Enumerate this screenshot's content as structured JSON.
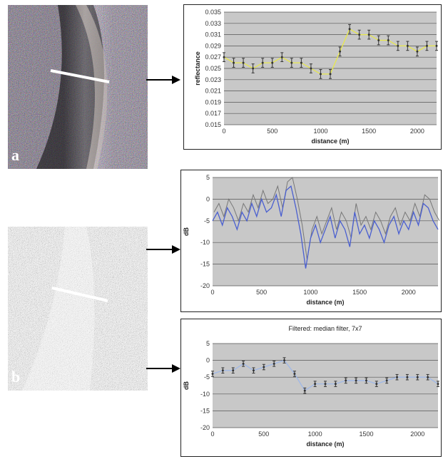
{
  "panels": [
    {
      "letter": "a"
    },
    {
      "letter": "b"
    }
  ],
  "chart_data": [
    {
      "type": "line",
      "title": "",
      "xlabel": "distance (m)",
      "ylabel": "reflectance",
      "xlim": [
        0,
        2200
      ],
      "ylim": [
        0.015,
        0.035
      ],
      "xticks": [
        "0",
        "500",
        "1000",
        "1500",
        "2000"
      ],
      "yticks": [
        "0.015",
        "0.017",
        "0.019",
        "0.021",
        "0.023",
        "0.025",
        "0.027",
        "0.029",
        "0.031",
        "0.033",
        "0.035"
      ],
      "grid": true,
      "series": [
        {
          "x": [
            0,
            100,
            200,
            300,
            400,
            500,
            600,
            700,
            800,
            900,
            1000,
            1100,
            1200,
            1300,
            1400,
            1500,
            1600,
            1700,
            1800,
            1900,
            2000,
            2100,
            2200
          ],
          "y": [
            0.027,
            0.026,
            0.026,
            0.025,
            0.026,
            0.026,
            0.027,
            0.026,
            0.026,
            0.025,
            0.024,
            0.024,
            0.028,
            0.032,
            0.031,
            0.031,
            0.03,
            0.03,
            0.029,
            0.029,
            0.028,
            0.029,
            0.029
          ],
          "err": [
            0.0008,
            0.0008,
            0.0008,
            0.0008,
            0.0008,
            0.0008,
            0.0008,
            0.0008,
            0.0008,
            0.0008,
            0.0008,
            0.0008,
            0.0008,
            0.0008,
            0.0008,
            0.0008,
            0.0008,
            0.0008,
            0.0008,
            0.0008,
            0.0008,
            0.0008,
            0.0008
          ]
        }
      ]
    },
    {
      "type": "line",
      "title": "",
      "xlabel": "distance (m)",
      "ylabel": "dB",
      "xlim": [
        0,
        2300
      ],
      "ylim": [
        -20,
        5
      ],
      "xticks": [
        "0",
        "500",
        "1000",
        "1500",
        "2000"
      ],
      "yticks": [
        "5",
        "0",
        "-5",
        "-10",
        "-15",
        "-20"
      ],
      "grid": true,
      "series": [
        {
          "x": [
            0,
            50,
            100,
            150,
            200,
            250,
            300,
            350,
            400,
            450,
            500,
            550,
            600,
            650,
            700,
            750,
            800,
            850,
            900,
            950,
            1000,
            1050,
            1100,
            1150,
            1200,
            1250,
            1300,
            1350,
            1400,
            1450,
            1500,
            1550,
            1600,
            1650,
            1700,
            1750,
            1800,
            1850,
            1900,
            1950,
            2000,
            2050,
            2100,
            2150,
            2200,
            2250,
            2300
          ],
          "y": [
            -5,
            -3,
            -6,
            -2,
            -4,
            -7,
            -3,
            -5,
            -1,
            -4,
            0,
            -3,
            -2,
            1,
            -4,
            2,
            3,
            -2,
            -8,
            -16,
            -9,
            -6,
            -10,
            -7,
            -4,
            -9,
            -5,
            -7,
            -11,
            -3,
            -8,
            -6,
            -9,
            -5,
            -7,
            -10,
            -6,
            -4,
            -8,
            -5,
            -7,
            -3,
            -6,
            -1,
            -2,
            -5,
            -7
          ]
        }
      ]
    },
    {
      "type": "line",
      "title": "Filtered: median filter, 7x7",
      "xlabel": "distance (m)",
      "ylabel": "dB",
      "xlim": [
        0,
        2200
      ],
      "ylim": [
        -20,
        5
      ],
      "xticks": [
        "0",
        "500",
        "1000",
        "1500",
        "2000"
      ],
      "yticks": [
        "5",
        "0",
        "-5",
        "-10",
        "-15",
        "-20"
      ],
      "grid": true,
      "series": [
        {
          "x": [
            0,
            100,
            200,
            300,
            400,
            500,
            600,
            700,
            800,
            900,
            1000,
            1100,
            1200,
            1300,
            1400,
            1500,
            1600,
            1700,
            1800,
            1900,
            2000,
            2100,
            2200
          ],
          "y": [
            -4,
            -3,
            -3,
            -1,
            -3,
            -2,
            -1,
            0,
            -4,
            -9,
            -7,
            -7,
            -7,
            -6,
            -6,
            -6,
            -7,
            -6,
            -5,
            -5,
            -5,
            -5,
            -7
          ],
          "err": [
            0.8,
            0.8,
            0.8,
            0.8,
            0.8,
            0.8,
            0.8,
            0.8,
            0.8,
            0.8,
            0.8,
            0.8,
            0.8,
            0.8,
            0.8,
            0.8,
            0.8,
            0.8,
            0.8,
            0.8,
            0.8,
            0.8,
            0.8
          ]
        }
      ]
    }
  ]
}
